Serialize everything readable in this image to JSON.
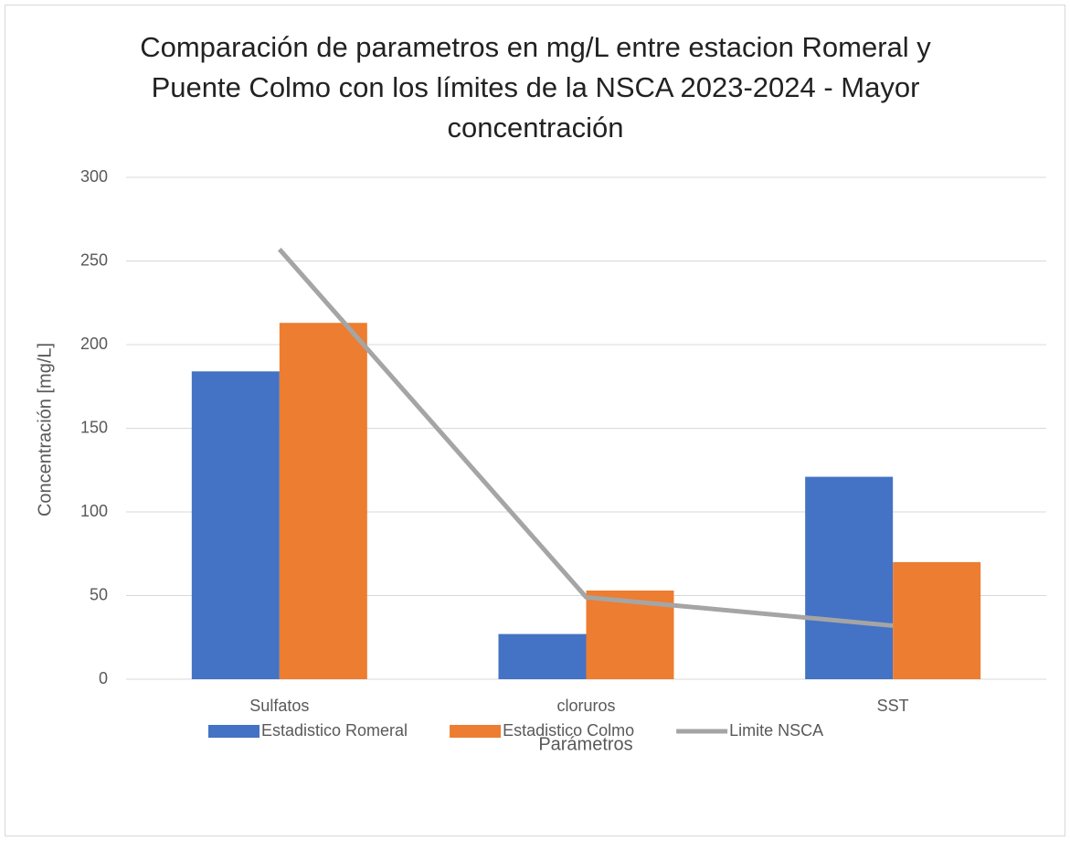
{
  "chart_data": {
    "type": "bar_line",
    "title": "Comparación de parametros en mg/L entre estacion Romeral y Puente Colmo con los límites de la NSCA 2023-2024 - Mayor concentración",
    "x_label": "Parámetros",
    "y_label": "Concentración [mg/L]",
    "categories": [
      "Sulfatos",
      "cloruros",
      "SST"
    ],
    "series": [
      {
        "name": "Estadistico Romeral",
        "type": "bar",
        "color": "#4472c4",
        "values": [
          184,
          27,
          121
        ]
      },
      {
        "name": "Estadistico Colmo",
        "type": "bar",
        "color": "#ed7d31",
        "values": [
          213,
          53,
          70
        ]
      },
      {
        "name": "Limite NSCA",
        "type": "line",
        "color": "#a5a5a5",
        "values": [
          257,
          49,
          32
        ]
      }
    ],
    "ylim": [
      0,
      300
    ],
    "yticks": [
      0,
      50,
      100,
      150,
      200,
      250,
      300
    ],
    "grid": true,
    "legend": "bottom"
  }
}
